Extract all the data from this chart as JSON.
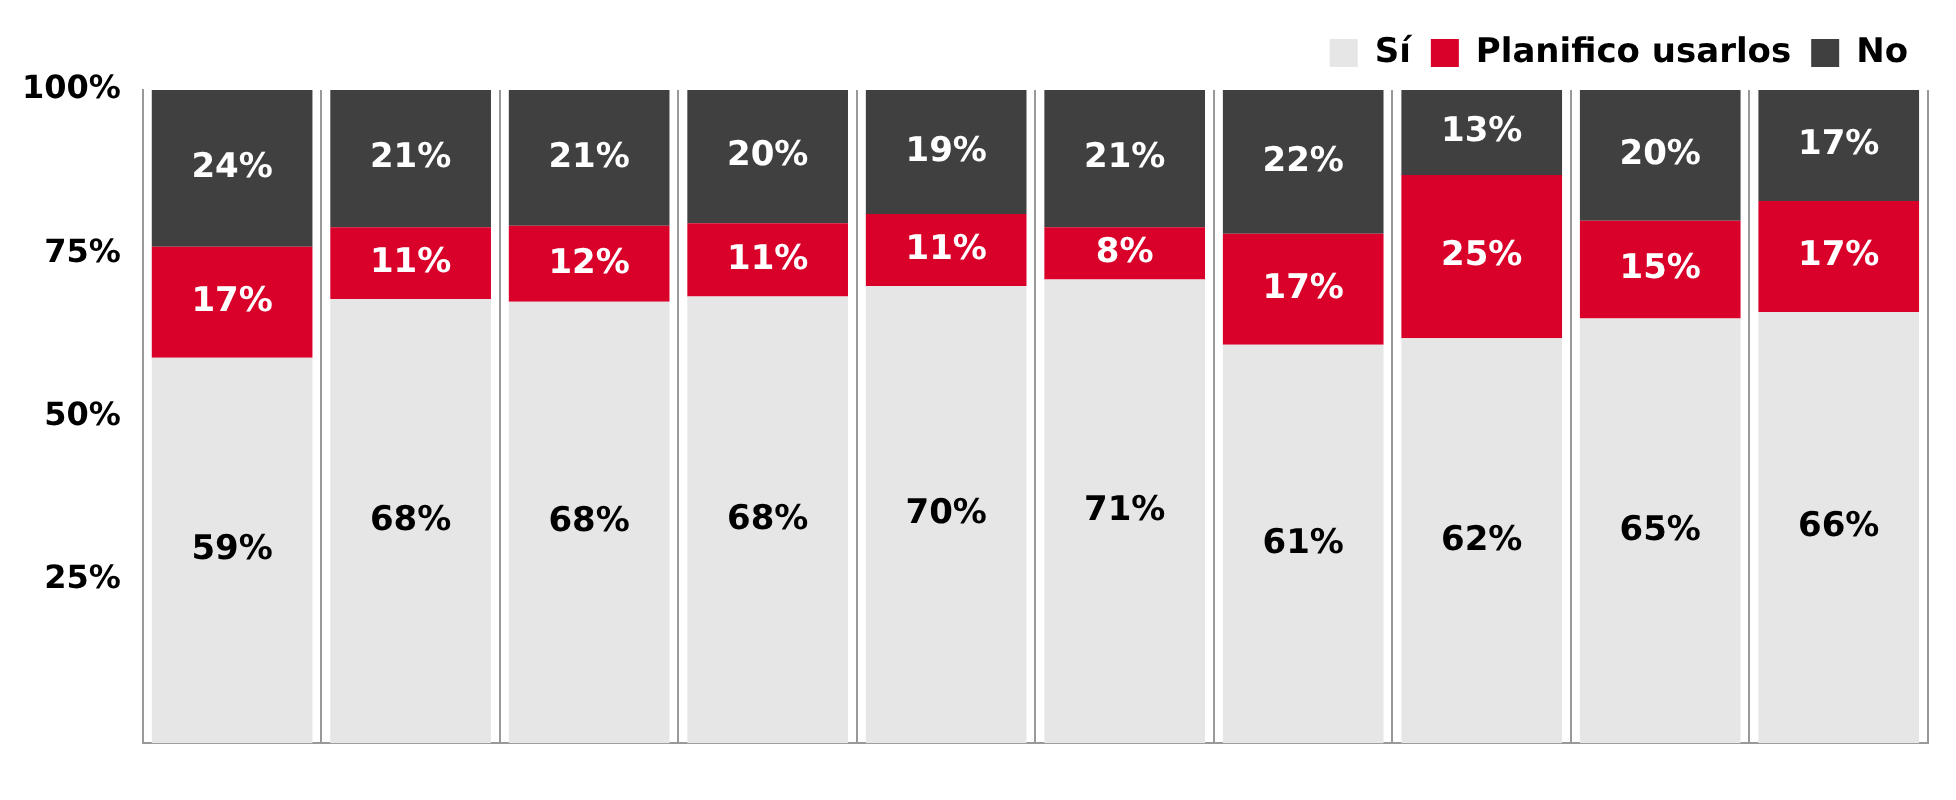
{
  "chart_data": {
    "type": "bar",
    "stacked": true,
    "categories": [
      null,
      null,
      null,
      null,
      null,
      null,
      null,
      null,
      null,
      null
    ],
    "series": [
      {
        "name": "Sí",
        "color": "#e6e6e6",
        "values": [
          59,
          68,
          67.6,
          68.4,
          70,
          71,
          61,
          62,
          65,
          66
        ],
        "value_labels": [
          "59%",
          "68%",
          "68%",
          "68%",
          "70%",
          "71%",
          "61%",
          "62%",
          "65%",
          "66%"
        ]
      },
      {
        "name": "Planifico usarlos",
        "color": "#d9002a",
        "values": [
          17,
          11,
          11.6,
          11.2,
          11,
          8,
          17,
          25,
          15,
          17
        ],
        "value_labels": [
          "17%",
          "11%",
          "12%",
          "11%",
          "11%",
          "8%",
          "17%",
          "25%",
          "15%",
          "17%"
        ]
      },
      {
        "name": "No",
        "color": "#404040",
        "values": [
          24,
          21,
          20.8,
          20.4,
          19,
          21,
          22,
          13,
          20,
          17
        ],
        "value_labels": [
          "24%",
          "21%",
          "21%",
          "20%",
          "19%",
          "21%",
          "22%",
          "13%",
          "20%",
          "17%"
        ]
      }
    ],
    "ylim": [
      0,
      100
    ],
    "yticks": [
      {
        "value": 25,
        "label": "25%"
      },
      {
        "value": 50,
        "label": "50%"
      },
      {
        "value": 75,
        "label": "75%"
      },
      {
        "value": 100,
        "label": "100%"
      }
    ],
    "grid": "x",
    "legend": "top right"
  }
}
